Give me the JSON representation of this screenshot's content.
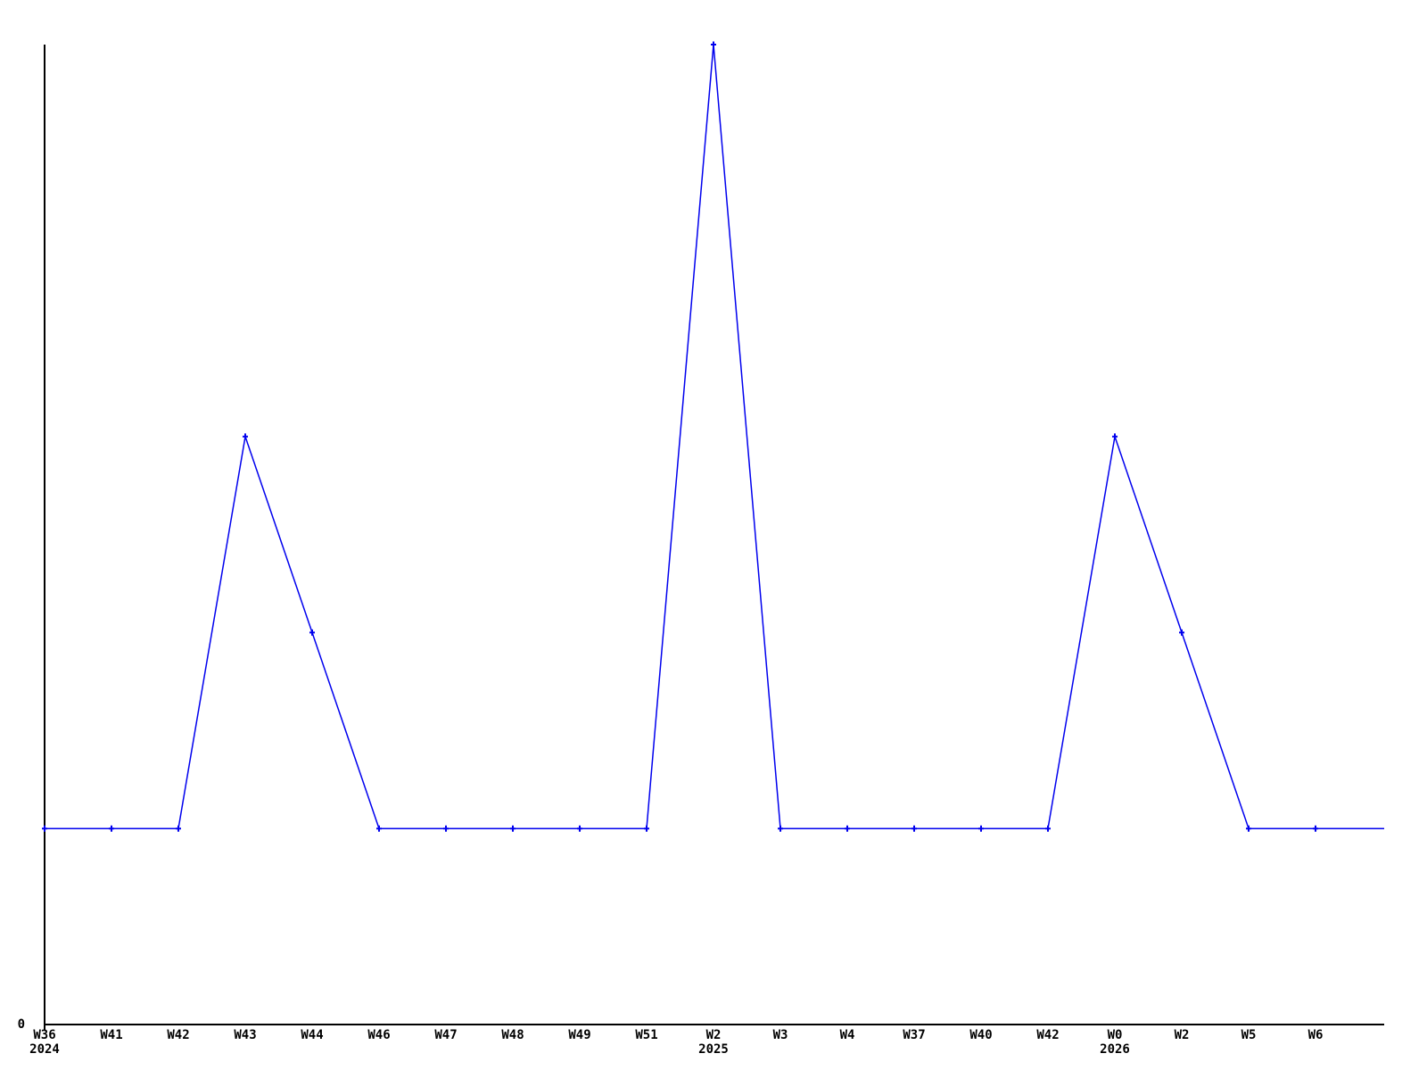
{
  "chart": {
    "background_color": "#ffffff",
    "line_color": "#0000ee",
    "axis_color": "#000000",
    "text_color": "#000000",
    "y_axis": {
      "zero_label": "0",
      "min": 0,
      "max": 5
    }
  },
  "chart_data": {
    "type": "line",
    "title": "",
    "xlabel": "",
    "ylabel": "",
    "ylim": [
      0,
      5
    ],
    "grid": false,
    "legend": null,
    "marker": "plus",
    "line_extends_to_right_edge": true,
    "categories": [
      "W36",
      "W41",
      "W42",
      "W43",
      "W44",
      "W46",
      "W47",
      "W48",
      "W49",
      "W51",
      "W2",
      "W3",
      "W4",
      "W37",
      "W40",
      "W42",
      "W0",
      "W2",
      "W5",
      "W6"
    ],
    "values": [
      1,
      1,
      1,
      3,
      2,
      1,
      1,
      1,
      1,
      1,
      5,
      1,
      1,
      1,
      1,
      1,
      3,
      2,
      1,
      1
    ],
    "year_markers": [
      {
        "index": 0,
        "year": "2024"
      },
      {
        "index": 10,
        "year": "2025"
      },
      {
        "index": 16,
        "year": "2026"
      }
    ],
    "y_tick_labels": [
      "0"
    ]
  }
}
